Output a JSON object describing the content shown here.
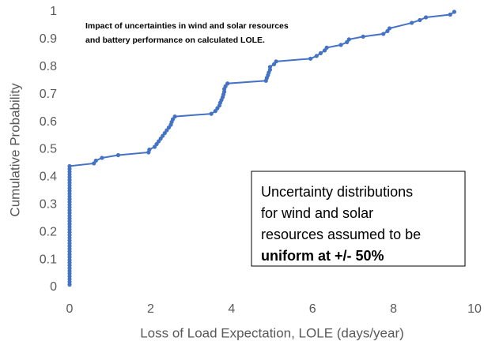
{
  "chart_data": {
    "type": "line",
    "x_label": "Loss of Load Expectation, LOLE (days/year)",
    "y_label": "Cumulative Probability",
    "annotations": [
      "Impact of uncertainties in wind and solar resources",
      "and battery performance on calculated LOLE."
    ],
    "box_text": [
      "Uncertainty distributions",
      "for wind and solar",
      "resources assumed to be",
      "uniform at +/- 50%"
    ],
    "xlim": [
      0,
      10
    ],
    "xticks": [
      0,
      2,
      4,
      6,
      8,
      10
    ],
    "ylim": [
      0,
      1
    ],
    "yticks": [
      0,
      0.1,
      0.2,
      0.3,
      0.4,
      0.5,
      0.6,
      0.7,
      0.8,
      0.9,
      1
    ],
    "grid": false,
    "series": [
      {
        "color": "#4472c4",
        "x": [
          0,
          0,
          0,
          0,
          0,
          0,
          0,
          0,
          0,
          0,
          0,
          0,
          0,
          0,
          0,
          0,
          0,
          0,
          0,
          0,
          0,
          0,
          0,
          0,
          0,
          0,
          0,
          0,
          0,
          0,
          0,
          0,
          0,
          0,
          0,
          0,
          0,
          0,
          0,
          0,
          0,
          0,
          0,
          0,
          0.6,
          0.65,
          0.8,
          1.2,
          1.95,
          1.97,
          2.1,
          2.15,
          2.2,
          2.25,
          2.3,
          2.35,
          2.4,
          2.45,
          2.5,
          2.52,
          2.55,
          2.6,
          3.5,
          3.6,
          3.65,
          3.7,
          3.72,
          3.75,
          3.78,
          3.8,
          3.82,
          3.82,
          3.85,
          3.9,
          4.85,
          4.87,
          4.9,
          4.92,
          4.95,
          4.95,
          5.05,
          5.1,
          5.95,
          6.1,
          6.2,
          6.3,
          6.35,
          6.7,
          6.85,
          6.9,
          7.25,
          7.75,
          7.85,
          7.9,
          8.45,
          8.65,
          8.8,
          9.4,
          9.5
        ],
        "values": [
          0.01,
          0.02,
          0.03,
          0.04,
          0.05,
          0.06,
          0.07,
          0.08,
          0.09,
          0.1,
          0.11,
          0.12,
          0.13,
          0.14,
          0.15,
          0.16,
          0.17,
          0.18,
          0.19,
          0.2,
          0.21,
          0.22,
          0.23,
          0.24,
          0.25,
          0.26,
          0.27,
          0.28,
          0.29,
          0.3,
          0.31,
          0.32,
          0.33,
          0.34,
          0.35,
          0.36,
          0.37,
          0.38,
          0.39,
          0.4,
          0.41,
          0.42,
          0.43,
          0.44,
          0.45,
          0.46,
          0.47,
          0.48,
          0.49,
          0.5,
          0.51,
          0.52,
          0.53,
          0.54,
          0.55,
          0.56,
          0.57,
          0.58,
          0.59,
          0.6,
          0.61,
          0.62,
          0.63,
          0.64,
          0.65,
          0.66,
          0.67,
          0.68,
          0.69,
          0.7,
          0.71,
          0.72,
          0.73,
          0.74,
          0.75,
          0.76,
          0.77,
          0.78,
          0.79,
          0.8,
          0.81,
          0.82,
          0.83,
          0.84,
          0.85,
          0.86,
          0.87,
          0.88,
          0.89,
          0.9,
          0.91,
          0.92,
          0.93,
          0.94,
          0.96,
          0.97,
          0.98,
          0.99,
          1
        ]
      }
    ]
  }
}
